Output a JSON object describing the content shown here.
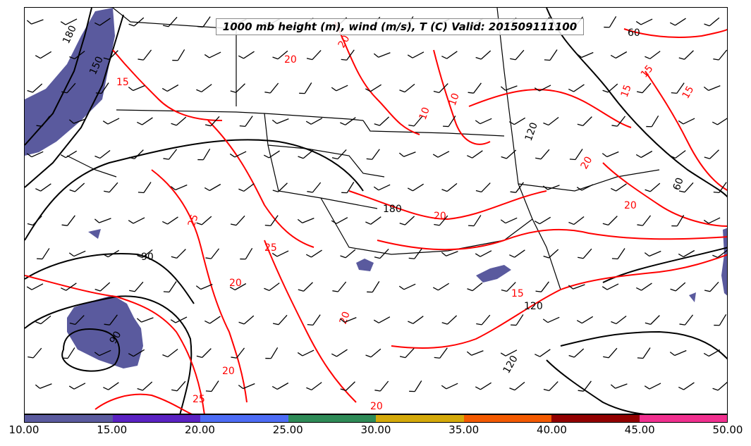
{
  "title": "1000 mb height (m), wind (m/s), T (C) Valid: 201509111100",
  "colorbar": {
    "colors": [
      "#5a5a9e",
      "#5a22c2",
      "#4d6cf5",
      "#2e8b57",
      "#d4a90a",
      "#f35a00",
      "#920000",
      "#f0308f"
    ],
    "ticks": [
      "10.00",
      "15.00",
      "20.00",
      "25.00",
      "30.00",
      "35.00",
      "40.00",
      "45.00",
      "50.00"
    ]
  },
  "contour_labels": {
    "height": [
      "180",
      "150",
      "90",
      "180",
      "120",
      "60",
      "60",
      "120",
      "120",
      "90"
    ],
    "temperature": [
      "15",
      "20",
      "20",
      "10",
      "15",
      "20",
      "25",
      "20",
      "25",
      "20",
      "20",
      "15",
      "20",
      "10",
      "15",
      "15",
      "20",
      "25",
      "20"
    ]
  },
  "colors": {
    "height_contour": "#000000",
    "temperature_contour": "#ff0000",
    "wind_shading": "#5a5a9e",
    "state_borders": "#000000"
  }
}
